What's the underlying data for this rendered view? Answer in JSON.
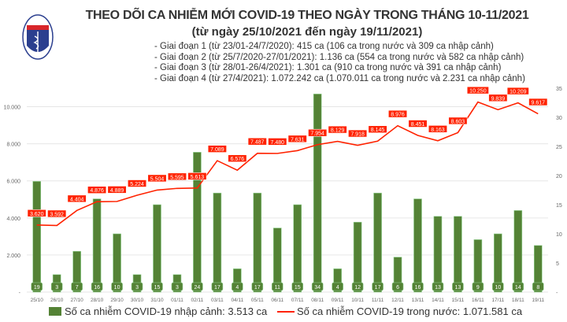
{
  "title": "THEO DÕI CA NHIỄM MỚI COVID-19 THEO NGÀY TRONG THÁNG 10-11/2021",
  "subtitle": "(từ ngày 25/10/2021 đến ngày 19/11/2021)",
  "notes": [
    "- Giai đoạn 1 (từ 23/01-24/7/2020): 415 ca (106 ca trong nước và 309 ca nhập cảnh)",
    "- Giai đoạn 2 (từ 25/7/2020-27/01/2021): 1.136 ca (554 ca trong nước và 582 ca nhập cảnh)",
    "- Giai đoạn 3 (từ 28/01-26/4/2021): 1.301 ca (910 ca trong nước và 391 ca nhập cảnh)",
    "- Giai đoạn 4 (từ 27/4/2021): 1.072.242 ca (1.070.011 ca trong nước và 2.231 ca nhập cảnh)"
  ],
  "logo": {
    "text": "BỘ Y TẾ",
    "subtext": "MINISTRY OF HEALTH"
  },
  "colors": {
    "bar": "#548235",
    "line": "#ff2200",
    "label_bg": "#ff2200",
    "grid": "#e6e6e6"
  },
  "chart_data": {
    "type": "bar+line",
    "categories": [
      "25/10",
      "26/10",
      "27/10",
      "28/10",
      "29/10",
      "30/10",
      "31/10",
      "01/11",
      "02/11",
      "03/11",
      "04/11",
      "05/11",
      "06/11",
      "07/11",
      "08/11",
      "09/11",
      "10/11",
      "11/11",
      "12/11",
      "13/11",
      "14/11",
      "15/11",
      "16/11",
      "17/11",
      "18/11",
      "19/11"
    ],
    "series": [
      {
        "name": "Số ca nhiễm COVID-19 nhập cảnh: 3.513 ca",
        "type": "bar",
        "axis": "right",
        "values": [
          19,
          3,
          7,
          16,
          10,
          3,
          15,
          3,
          24,
          17,
          4,
          17,
          11,
          15,
          34,
          4,
          12,
          17,
          6,
          16,
          13,
          13,
          9,
          10,
          14,
          8
        ]
      },
      {
        "name": "Số ca nhiễm COVID-19 trong nước: 1.071.581 ca",
        "type": "line",
        "axis": "left",
        "values": [
          3620,
          3592,
          4404,
          4876,
          4889,
          5224,
          5504,
          5595,
          5613,
          7089,
          6576,
          7487,
          7480,
          7631,
          7954,
          8129,
          7918,
          8145,
          8976,
          8451,
          8163,
          8603,
          10250,
          9839,
          10209,
          9617
        ],
        "labels": [
          "3.620",
          "3.592",
          "4.404",
          "4.876",
          "4.889",
          "5.224",
          "5.504",
          "5.595",
          "5.613",
          "7.089",
          "6.576",
          "7.487",
          "7.480",
          "7.631",
          "7.954",
          "8.129",
          "7.918",
          "8.145",
          "8.976",
          "8.451",
          "8.163",
          "8.603",
          "10.250",
          "9.839",
          "10.209",
          "9.617"
        ]
      }
    ],
    "left_axis": {
      "ticks": [
        "-",
        "2.000",
        "4.000",
        "6.000",
        "8.000",
        "10.000"
      ],
      "tick_values": [
        0,
        2000,
        4000,
        6000,
        8000,
        10000
      ],
      "ylim": [
        0,
        11000
      ]
    },
    "right_axis": {
      "ticks": [
        "-",
        "5",
        "10",
        "15",
        "20",
        "25",
        "30",
        "35"
      ],
      "tick_values": [
        0,
        5,
        10,
        15,
        20,
        25,
        30,
        35
      ],
      "ylim": [
        0,
        35
      ]
    },
    "grid": true,
    "legend_position": "bottom"
  }
}
